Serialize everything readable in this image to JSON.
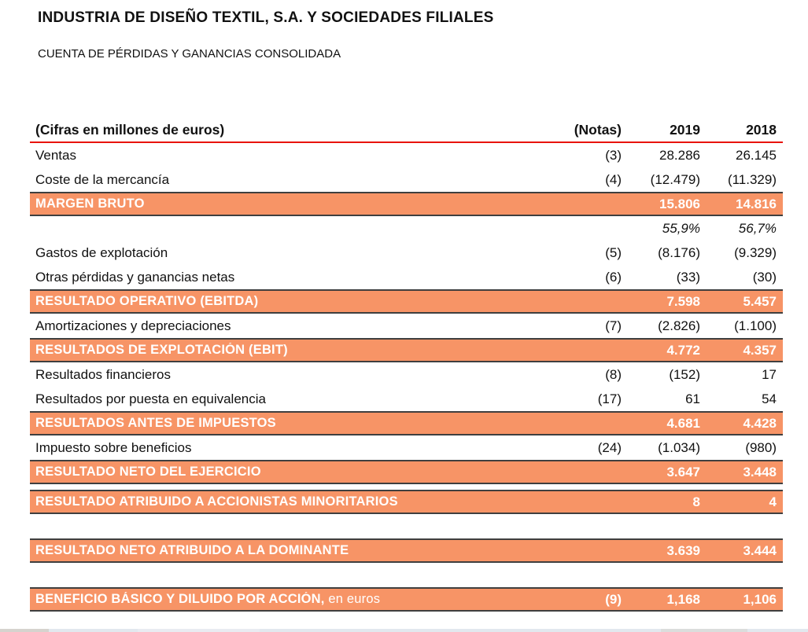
{
  "document": {
    "title": "INDUSTRIA DE DISEÑO TEXTIL, S.A. Y SOCIEDADES FILIALES",
    "subtitle": "CUENTA DE PÉRDIDAS Y GANANCIAS CONSOLIDADA"
  },
  "colors": {
    "band-orange": "#f79466",
    "band-text": "#ffffff",
    "band-border": "#3f3f3f",
    "rule-red": "#e8130c",
    "strip-main": "#e2e8ee",
    "strip-left": "#d6d3ce",
    "strip-mid": "#e9ebf1"
  },
  "table": {
    "header": {
      "label": "(Cifras en millones de euros)",
      "notes": "(Notas)",
      "col2019": "2019",
      "col2018": "2018"
    },
    "rows": [
      {
        "type": "normal",
        "label": "Ventas",
        "note": "(3)",
        "y2019": "28.286",
        "y2018": "26.145"
      },
      {
        "type": "normal",
        "label": "Coste de la mercancía",
        "note": "(4)",
        "y2019": "(12.479)",
        "y2018": "(11.329)"
      },
      {
        "type": "band",
        "label": "MARGEN BRUTO",
        "note": "",
        "y2019": "15.806",
        "y2018": "14.816"
      },
      {
        "type": "percent",
        "label": "",
        "note": "",
        "y2019": "55,9%",
        "y2018": "56,7%"
      },
      {
        "type": "normal",
        "label": "Gastos de explotación",
        "note": "(5)",
        "y2019": "(8.176)",
        "y2018": "(9.329)"
      },
      {
        "type": "normal",
        "label": "Otras pérdidas y ganancias netas",
        "note": "(6)",
        "y2019": "(33)",
        "y2018": "(30)"
      },
      {
        "type": "band",
        "label": "RESULTADO OPERATIVO (EBITDA)",
        "note": "",
        "y2019": "7.598",
        "y2018": "5.457"
      },
      {
        "type": "normal",
        "label": "Amortizaciones y depreciaciones",
        "note": "(7)",
        "y2019": "(2.826)",
        "y2018": "(1.100)"
      },
      {
        "type": "band",
        "label": "RESULTADOS DE EXPLOTACIÓN (EBIT)",
        "note": "",
        "y2019": "4.772",
        "y2018": "4.357"
      },
      {
        "type": "normal",
        "label": "Resultados financieros",
        "note": "(8)",
        "y2019": "(152)",
        "y2018": "17"
      },
      {
        "type": "normal",
        "label": "Resultados por puesta en equivalencia",
        "note": "(17)",
        "y2019": "61",
        "y2018": "54"
      },
      {
        "type": "band",
        "label": "RESULTADOS ANTES DE IMPUESTOS",
        "note": "",
        "y2019": "4.681",
        "y2018": "4.428"
      },
      {
        "type": "normal",
        "label": "Impuesto sobre beneficios",
        "note": "(24)",
        "y2019": "(1.034)",
        "y2018": "(980)"
      },
      {
        "type": "band",
        "label": "RESULTADO NETO DEL EJERCICIO",
        "note": "",
        "y2019": "3.647",
        "y2018": "3.448"
      },
      {
        "type": "gap",
        "height": 7
      },
      {
        "type": "band",
        "label": "RESULTADO ATRIBUIDO A ACCIONISTAS MINORITARIOS",
        "note": "",
        "y2019": "8",
        "y2018": "4"
      },
      {
        "type": "gap",
        "height": 31
      },
      {
        "type": "band",
        "label": "RESULTADO NETO ATRIBUIDO A LA DOMINANTE",
        "note": "",
        "y2019": "3.639",
        "y2018": "3.444"
      },
      {
        "type": "gap",
        "height": 31
      },
      {
        "type": "band",
        "label": "BENEFICIO BÁSICO Y DILUIDO POR ACCIÓN,",
        "label_suffix": "  en euros",
        "note": "(9)",
        "y2019": "1,168",
        "y2018": "1,106"
      }
    ]
  }
}
